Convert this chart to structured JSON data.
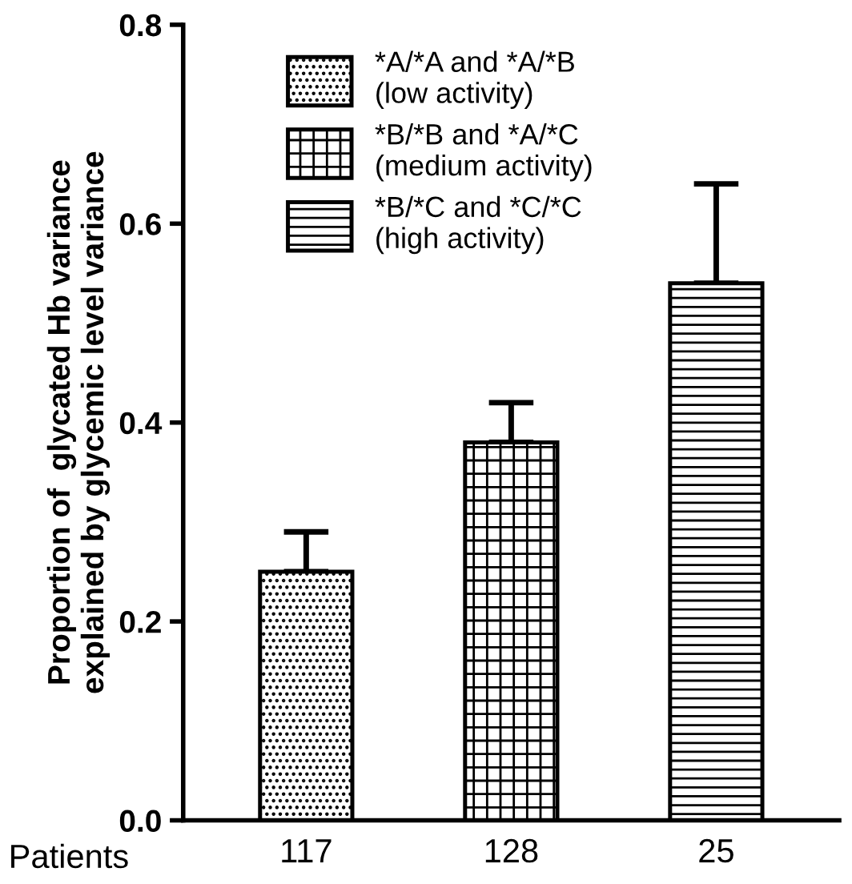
{
  "chart_data": {
    "type": "bar",
    "ylabel": "Proportion of  glycated Hb variance\nexplained by glycemic level variance",
    "categories": [
      "117",
      "128",
      "25"
    ],
    "series": [
      {
        "name": "*A/*A and *A/*B\n(low activity)",
        "color": "#000000",
        "values": [
          0.25,
          null,
          null
        ],
        "errors": [
          [
            0.25,
            0.29
          ],
          null,
          null
        ]
      },
      {
        "name": "*B/*B and *A/*C\n(medium activity)",
        "color": "#000000",
        "values": [
          null,
          0.38,
          null
        ],
        "errors": [
          null,
          [
            0.38,
            0.42
          ],
          null
        ]
      },
      {
        "name": "*B/*C and *C/*C\n(high activity)",
        "color": "#000000",
        "values": [
          null,
          null,
          0.54
        ],
        "errors": [
          null,
          null,
          [
            0.54,
            0.64
          ]
        ]
      }
    ],
    "ylim": [
      0,
      0.8
    ],
    "yticks": [
      {
        "value": 0,
        "label": "0.0"
      },
      {
        "value": 0.2,
        "label": "0.2"
      },
      {
        "value": 0.4,
        "label": "0.4"
      },
      {
        "value": 0.6,
        "label": "0.6"
      },
      {
        "value": 0.8,
        "label": "0.8"
      }
    ],
    "annotations": [
      "Patients"
    ],
    "legend": "top left",
    "grid": false
  }
}
